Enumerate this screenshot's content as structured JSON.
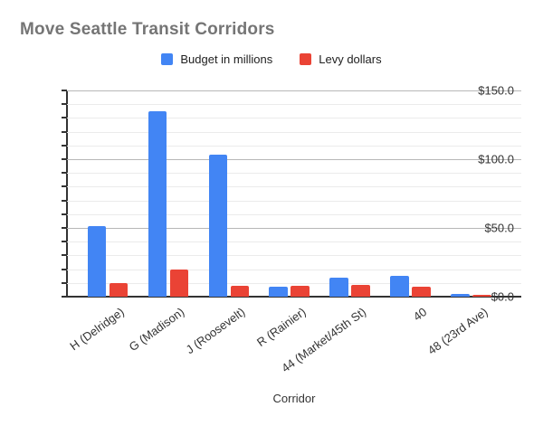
{
  "chart_data": {
    "type": "bar",
    "title": "Move Seattle Transit Corridors",
    "xlabel": "Corridor",
    "ylabel": "",
    "categories": [
      "H (Delridge)",
      "G (Madison)",
      "J (Roosevelt)",
      "R (Rainier)",
      "44 (Market/45th St)",
      "40",
      "48 (23rd Ave)"
    ],
    "series": [
      {
        "name": "Budget in millions",
        "color": "#4285F4",
        "values": [
          51,
          135,
          103,
          7.5,
          14,
          15,
          2
        ]
      },
      {
        "name": "Levy dollars",
        "color": "#EA4335",
        "values": [
          10,
          20,
          8,
          8,
          8.5,
          7.5,
          1
        ]
      }
    ],
    "ylim": [
      0,
      150
    ],
    "y_major_step": 50,
    "y_minor_step": 10,
    "y_major_ticks": [
      0,
      50,
      100,
      150
    ],
    "y_tick_labels": [
      "$0.0",
      "$50.0",
      "$100.0",
      "$150.0"
    ],
    "grid": true,
    "legend_position": "top"
  },
  "colors": {
    "title": "#757575",
    "series_budget": "#4285F4",
    "series_levy": "#EA4335",
    "grid_minor": "#ebebeb",
    "grid_major": "#b7b7b7",
    "axis": "#333333",
    "background": "#ffffff"
  }
}
